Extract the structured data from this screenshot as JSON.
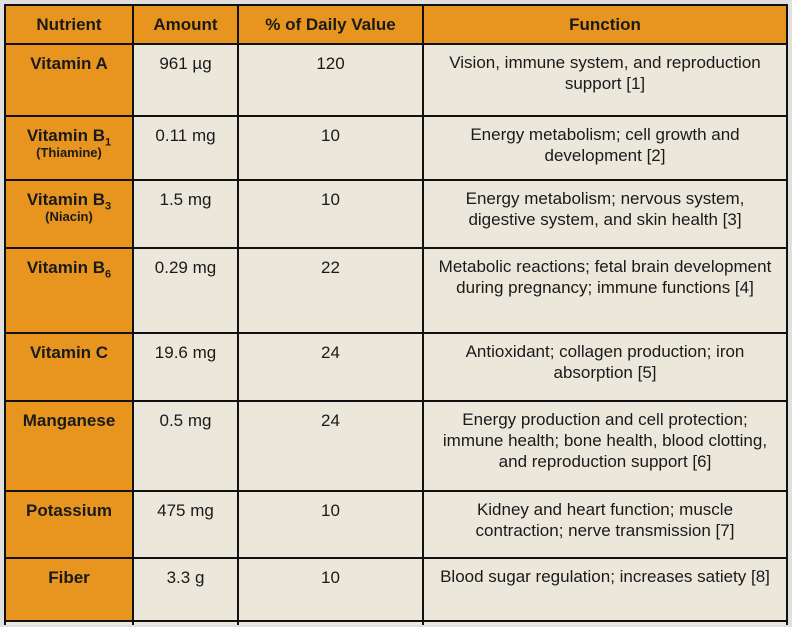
{
  "table": {
    "columns": [
      "Nutrient",
      "Amount",
      "% of Daily Value",
      "Function"
    ],
    "rows": [
      {
        "nutrient": "Vitamin A",
        "subscript": "",
        "note": "",
        "amount": "961 µg",
        "daily_value": "120",
        "function": "Vision, immune system, and reproduction support [1]"
      },
      {
        "nutrient": "Vitamin B",
        "subscript": "1",
        "note": "(Thiamine)",
        "amount": "0.11 mg",
        "daily_value": "10",
        "function": "Energy metabolism; cell growth and development [2]"
      },
      {
        "nutrient": "Vitamin B",
        "subscript": "3",
        "note": "(Niacin)",
        "amount": "1.5 mg",
        "daily_value": "10",
        "function": "Energy metabolism; nervous system, digestive system, and skin health [3]"
      },
      {
        "nutrient": "Vitamin B",
        "subscript": "6",
        "note": "",
        "amount": "0.29 mg",
        "daily_value": "22",
        "function": "Metabolic reactions; fetal brain development during pregnancy; immune functions [4]"
      },
      {
        "nutrient": "Vitamin C",
        "subscript": "",
        "note": "",
        "amount": "19.6 mg",
        "daily_value": "24",
        "function": "Antioxidant; collagen production; iron absorption [5]"
      },
      {
        "nutrient": "Manganese",
        "subscript": "",
        "note": "",
        "amount": "0.5 mg",
        "daily_value": "24",
        "function": "Energy production and cell protection; immune health; bone health, blood clotting, and reproduction support [6]"
      },
      {
        "nutrient": "Potassium",
        "subscript": "",
        "note": "",
        "amount": "475 mg",
        "daily_value": "10",
        "function": "Kidney and heart function; muscle contraction; nerve transmission [7]"
      },
      {
        "nutrient": "Fiber",
        "subscript": "",
        "note": "",
        "amount": "3.3 g",
        "daily_value": "10",
        "function": "Blood sugar regulation; increases satiety [8]"
      }
    ],
    "colors": {
      "header_bg": "#E8951F",
      "nutrient_column_bg": "#E8951F",
      "cell_bg": "#EBE7DB",
      "border": "#111111",
      "page_bg": "#E0E0E0",
      "text": "#1a1a1a"
    }
  }
}
